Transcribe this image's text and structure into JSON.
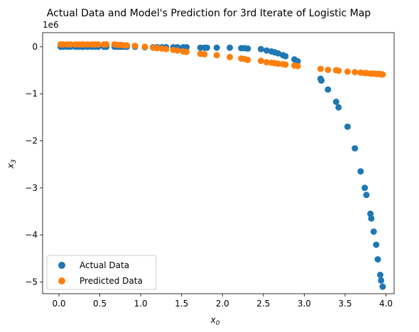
{
  "chart_data": {
    "type": "scatter",
    "title": "Actual Data and Model's Prediction for 3rd Iterate of Logistic Map",
    "xlabel": "x",
    "xlabel_subscript": "0",
    "ylabel": "x",
    "ylabel_subscript": "3",
    "y_offset_label": "1e6",
    "xlim": [
      -0.2,
      4.1
    ],
    "ylim": [
      -5.25,
      0.3
    ],
    "xticks": [
      0.0,
      0.5,
      1.0,
      1.5,
      2.0,
      2.5,
      3.0,
      3.5,
      4.0
    ],
    "xtick_labels": [
      "0.0",
      "0.5",
      "1.0",
      "1.5",
      "2.0",
      "2.5",
      "3.0",
      "3.5",
      "4.0"
    ],
    "yticks": [
      0,
      -1,
      -2,
      -3,
      -4,
      -5
    ],
    "ytick_labels": [
      "0",
      "−1",
      "−2",
      "−3",
      "−4",
      "−5"
    ],
    "legend_position": "lower-left",
    "grid": false,
    "series": [
      {
        "name": "Actual Data",
        "color": "#1f77b4",
        "points": [
          [
            0.02,
            0.0
          ],
          [
            0.05,
            0.0
          ],
          [
            0.1,
            0.0
          ],
          [
            0.14,
            0.0
          ],
          [
            0.2,
            0.0
          ],
          [
            0.24,
            0.0
          ],
          [
            0.28,
            0.0
          ],
          [
            0.3,
            0.0
          ],
          [
            0.35,
            0.0
          ],
          [
            0.4,
            0.0
          ],
          [
            0.44,
            0.0
          ],
          [
            0.48,
            0.0
          ],
          [
            0.55,
            0.0
          ],
          [
            0.58,
            0.0
          ],
          [
            0.68,
            0.0
          ],
          [
            0.72,
            0.0
          ],
          [
            0.76,
            0.0
          ],
          [
            0.8,
            0.0
          ],
          [
            0.83,
            0.0
          ],
          [
            0.93,
            0.0
          ],
          [
            1.05,
            -0.01
          ],
          [
            1.15,
            -0.01
          ],
          [
            1.2,
            -0.01
          ],
          [
            1.26,
            -0.01
          ],
          [
            1.31,
            -0.01
          ],
          [
            1.4,
            -0.01
          ],
          [
            1.45,
            -0.01
          ],
          [
            1.52,
            -0.01
          ],
          [
            1.56,
            -0.01
          ],
          [
            1.73,
            -0.02
          ],
          [
            1.78,
            -0.02
          ],
          [
            1.81,
            -0.02
          ],
          [
            1.93,
            -0.02
          ],
          [
            2.09,
            -0.02
          ],
          [
            2.23,
            -0.03
          ],
          [
            2.27,
            -0.03
          ],
          [
            2.31,
            -0.04
          ],
          [
            2.47,
            -0.05
          ],
          [
            2.54,
            -0.08
          ],
          [
            2.6,
            -0.1
          ],
          [
            2.64,
            -0.12
          ],
          [
            2.68,
            -0.14
          ],
          [
            2.74,
            -0.18
          ],
          [
            2.77,
            -0.2
          ],
          [
            2.88,
            -0.27
          ],
          [
            2.92,
            -0.31
          ],
          [
            3.2,
            -0.68
          ],
          [
            3.21,
            -0.72
          ],
          [
            3.29,
            -0.91
          ],
          [
            3.39,
            -1.17
          ],
          [
            3.42,
            -1.29
          ],
          [
            3.53,
            -1.7
          ],
          [
            3.62,
            -2.16
          ],
          [
            3.69,
            -2.65
          ],
          [
            3.74,
            -3.0
          ],
          [
            3.76,
            -3.15
          ],
          [
            3.81,
            -3.55
          ],
          [
            3.82,
            -3.65
          ],
          [
            3.85,
            -3.93
          ],
          [
            3.88,
            -4.21
          ],
          [
            3.9,
            -4.52
          ],
          [
            3.93,
            -4.85
          ],
          [
            3.94,
            -4.97
          ],
          [
            3.96,
            -5.1
          ]
        ]
      },
      {
        "name": "Predicted Data",
        "color": "#ff7f0e",
        "points": [
          [
            0.02,
            0.05
          ],
          [
            0.05,
            0.05
          ],
          [
            0.1,
            0.05
          ],
          [
            0.14,
            0.05
          ],
          [
            0.2,
            0.05
          ],
          [
            0.24,
            0.05
          ],
          [
            0.28,
            0.05
          ],
          [
            0.3,
            0.05
          ],
          [
            0.35,
            0.05
          ],
          [
            0.4,
            0.05
          ],
          [
            0.44,
            0.05
          ],
          [
            0.48,
            0.05
          ],
          [
            0.55,
            0.05
          ],
          [
            0.58,
            0.05
          ],
          [
            0.68,
            0.05
          ],
          [
            0.72,
            0.04
          ],
          [
            0.76,
            0.04
          ],
          [
            0.8,
            0.03
          ],
          [
            0.83,
            0.03
          ],
          [
            0.93,
            0.02
          ],
          [
            1.05,
            0.0
          ],
          [
            1.15,
            -0.02
          ],
          [
            1.2,
            -0.03
          ],
          [
            1.26,
            -0.04
          ],
          [
            1.31,
            -0.05
          ],
          [
            1.4,
            -0.07
          ],
          [
            1.45,
            -0.08
          ],
          [
            1.52,
            -0.1
          ],
          [
            1.56,
            -0.11
          ],
          [
            1.73,
            -0.15
          ],
          [
            1.78,
            -0.16
          ],
          [
            1.93,
            -0.18
          ],
          [
            2.09,
            -0.22
          ],
          [
            2.23,
            -0.25
          ],
          [
            2.27,
            -0.26
          ],
          [
            2.31,
            -0.28
          ],
          [
            2.47,
            -0.3
          ],
          [
            2.54,
            -0.33
          ],
          [
            2.6,
            -0.34
          ],
          [
            2.64,
            -0.35
          ],
          [
            2.68,
            -0.36
          ],
          [
            2.74,
            -0.37
          ],
          [
            2.77,
            -0.38
          ],
          [
            2.88,
            -0.4
          ],
          [
            2.92,
            -0.41
          ],
          [
            3.2,
            -0.47
          ],
          [
            3.29,
            -0.49
          ],
          [
            3.39,
            -0.5
          ],
          [
            3.42,
            -0.51
          ],
          [
            3.53,
            -0.53
          ],
          [
            3.62,
            -0.54
          ],
          [
            3.69,
            -0.55
          ],
          [
            3.74,
            -0.56
          ],
          [
            3.76,
            -0.56
          ],
          [
            3.81,
            -0.57
          ],
          [
            3.82,
            -0.57
          ],
          [
            3.85,
            -0.57
          ],
          [
            3.88,
            -0.58
          ],
          [
            3.9,
            -0.58
          ],
          [
            3.93,
            -0.58
          ],
          [
            3.94,
            -0.59
          ],
          [
            3.96,
            -0.59
          ]
        ]
      }
    ]
  }
}
